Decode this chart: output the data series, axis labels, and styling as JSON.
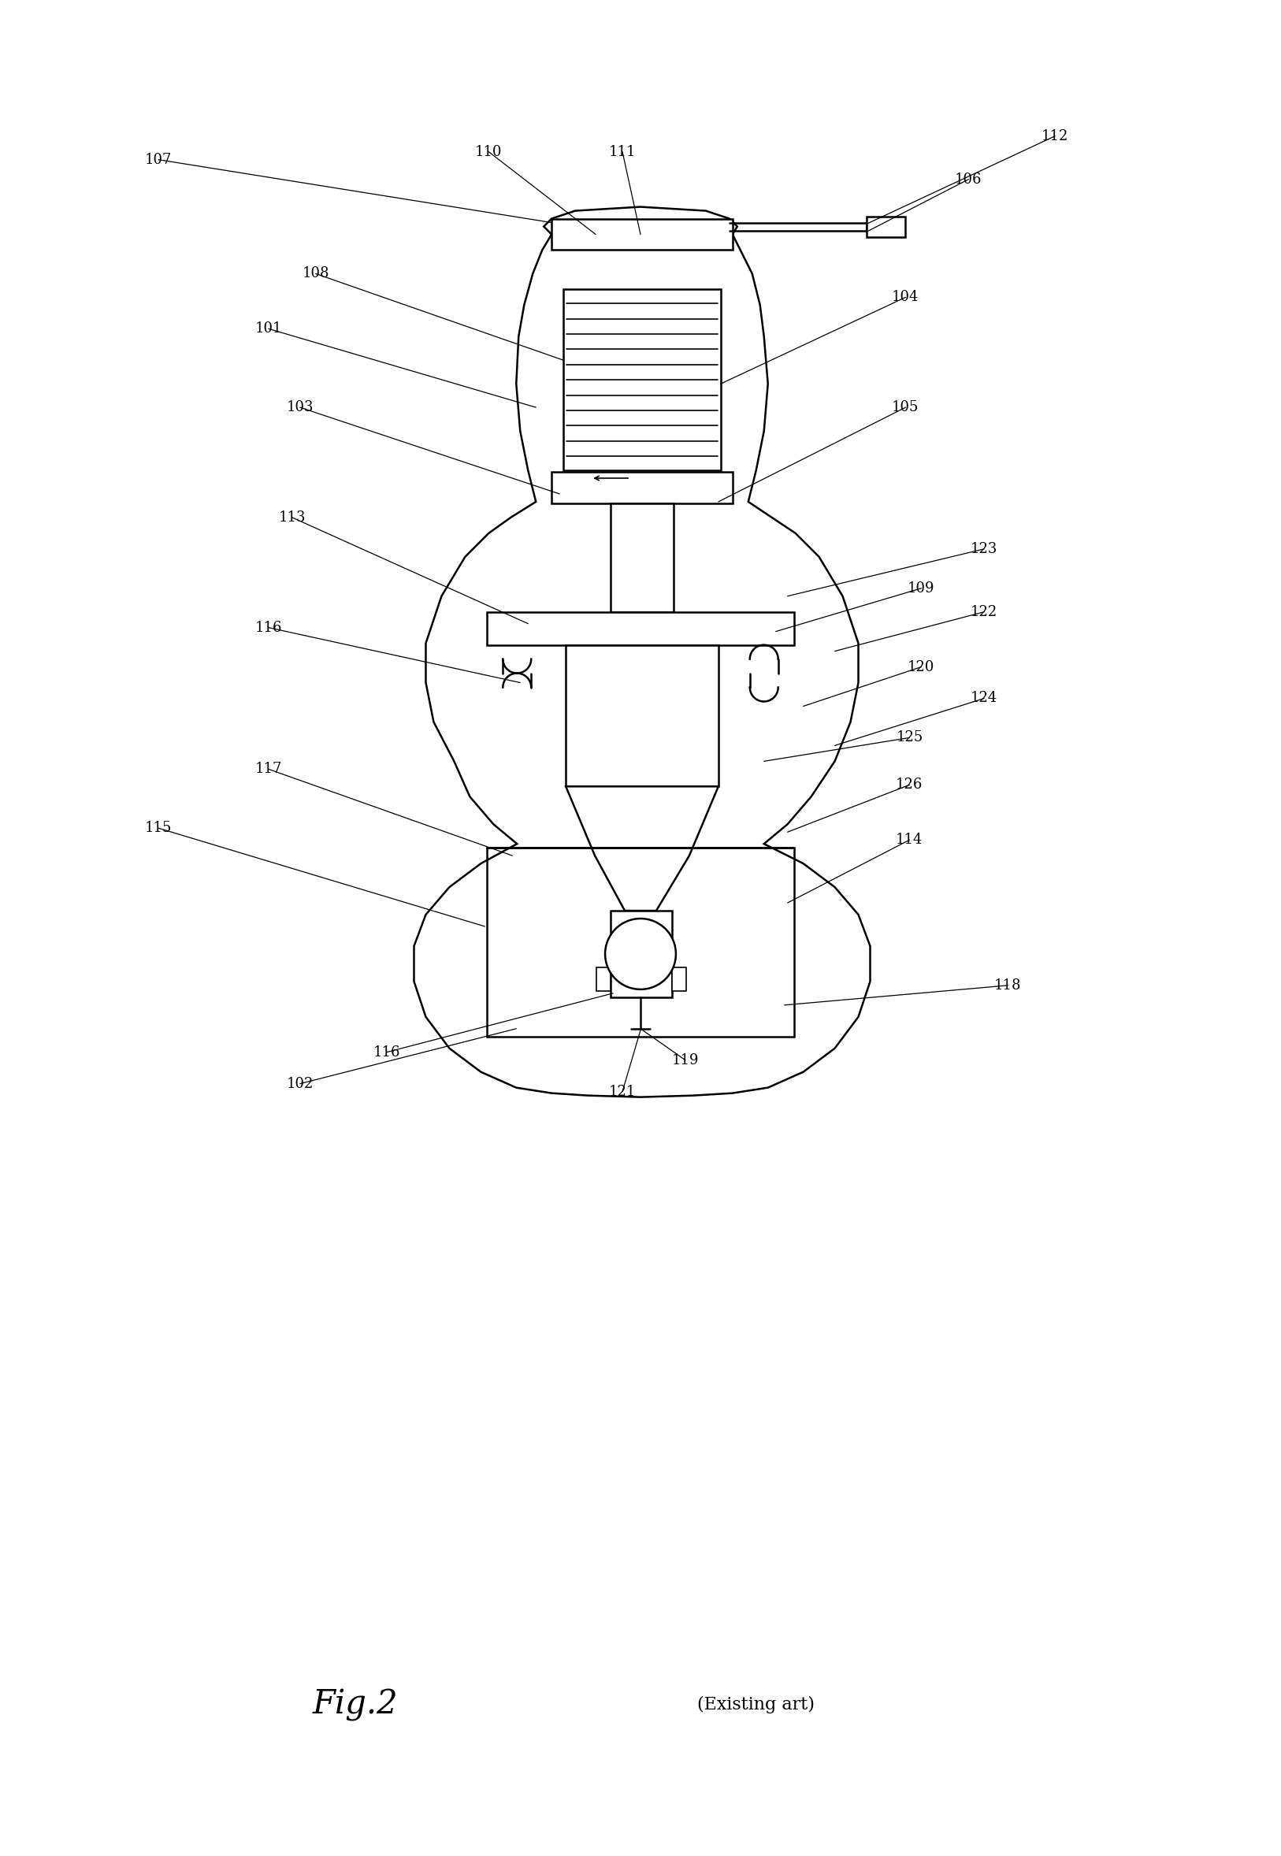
{
  "title": "Fig.2",
  "subtitle": "(Existing art)",
  "bg_color": "#ffffff",
  "line_color": "#000000",
  "label_fontsize": 13,
  "title_fontsize": 30,
  "subtitle_fontsize": 16
}
